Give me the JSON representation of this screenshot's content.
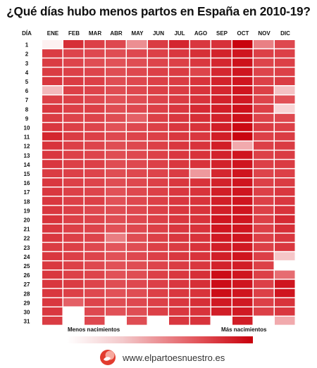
{
  "title": "¿Qué días hubo menos partos en España en 2010-19?",
  "website": "www.elpartoesnuestro.es",
  "chart_data": {
    "type": "heatmap",
    "row_header": "DÍA",
    "columns": [
      "ENE",
      "FEB",
      "MAR",
      "ABR",
      "MAY",
      "JUN",
      "JUL",
      "AGO",
      "SEP",
      "OCT",
      "NOV",
      "DIC"
    ],
    "rows": [
      "1",
      "2",
      "3",
      "4",
      "5",
      "6",
      "7",
      "8",
      "9",
      "10",
      "11",
      "12",
      "13",
      "14",
      "15",
      "16",
      "17",
      "18",
      "19",
      "20",
      "21",
      "22",
      "23",
      "24",
      "25",
      "26",
      "27",
      "28",
      "29",
      "30",
      "31"
    ],
    "color_scale": {
      "low": "#ffffff",
      "mid": "#e2555b",
      "high": "#c8000b"
    },
    "legend": {
      "low_label": "Menos nacimientos",
      "high_label": "Más nacimientos"
    },
    "values": [
      [
        0.05,
        0.78,
        0.7,
        0.66,
        0.4,
        0.72,
        0.82,
        0.74,
        0.77,
        0.98,
        0.45,
        0.66
      ],
      [
        0.72,
        0.68,
        0.66,
        0.64,
        0.66,
        0.7,
        0.74,
        0.78,
        0.84,
        0.9,
        0.7,
        0.7
      ],
      [
        0.72,
        0.68,
        0.64,
        0.62,
        0.64,
        0.68,
        0.7,
        0.74,
        0.82,
        0.92,
        0.68,
        0.7
      ],
      [
        0.72,
        0.7,
        0.68,
        0.64,
        0.66,
        0.7,
        0.72,
        0.68,
        0.82,
        0.9,
        0.68,
        0.7
      ],
      [
        0.74,
        0.72,
        0.7,
        0.64,
        0.66,
        0.7,
        0.72,
        0.76,
        0.84,
        0.9,
        0.7,
        0.72
      ],
      [
        0.25,
        0.7,
        0.68,
        0.64,
        0.66,
        0.7,
        0.72,
        0.76,
        0.82,
        0.9,
        0.7,
        0.22
      ],
      [
        0.7,
        0.7,
        0.66,
        0.62,
        0.64,
        0.68,
        0.72,
        0.76,
        0.84,
        0.88,
        0.68,
        0.62
      ],
      [
        0.74,
        0.7,
        0.7,
        0.64,
        0.66,
        0.7,
        0.74,
        0.8,
        0.86,
        0.92,
        0.7,
        0.15
      ],
      [
        0.72,
        0.68,
        0.68,
        0.64,
        0.56,
        0.7,
        0.74,
        0.78,
        0.84,
        0.92,
        0.68,
        0.66
      ],
      [
        0.74,
        0.7,
        0.68,
        0.62,
        0.66,
        0.7,
        0.74,
        0.76,
        0.86,
        0.96,
        0.72,
        0.7
      ],
      [
        0.82,
        0.72,
        0.7,
        0.66,
        0.68,
        0.7,
        0.74,
        0.74,
        0.86,
        0.98,
        0.7,
        0.72
      ],
      [
        0.76,
        0.7,
        0.68,
        0.64,
        0.66,
        0.7,
        0.74,
        0.76,
        0.86,
        0.3,
        0.7,
        0.72
      ],
      [
        0.74,
        0.7,
        0.68,
        0.64,
        0.66,
        0.7,
        0.74,
        0.76,
        0.84,
        0.9,
        0.7,
        0.72
      ],
      [
        0.74,
        0.7,
        0.7,
        0.64,
        0.66,
        0.7,
        0.74,
        0.76,
        0.84,
        0.9,
        0.7,
        0.72
      ],
      [
        0.72,
        0.7,
        0.68,
        0.64,
        0.66,
        0.68,
        0.72,
        0.36,
        0.82,
        0.9,
        0.68,
        0.7
      ],
      [
        0.74,
        0.7,
        0.68,
        0.64,
        0.66,
        0.7,
        0.74,
        0.76,
        0.84,
        0.9,
        0.7,
        0.72
      ],
      [
        0.74,
        0.7,
        0.68,
        0.62,
        0.66,
        0.7,
        0.74,
        0.76,
        0.86,
        0.9,
        0.7,
        0.74
      ],
      [
        0.74,
        0.7,
        0.7,
        0.62,
        0.66,
        0.7,
        0.74,
        0.76,
        0.86,
        0.9,
        0.7,
        0.74
      ],
      [
        0.74,
        0.7,
        0.66,
        0.64,
        0.66,
        0.7,
        0.74,
        0.76,
        0.86,
        0.9,
        0.7,
        0.76
      ],
      [
        0.76,
        0.7,
        0.68,
        0.64,
        0.66,
        0.7,
        0.74,
        0.76,
        0.9,
        0.9,
        0.7,
        0.8
      ],
      [
        0.74,
        0.7,
        0.68,
        0.62,
        0.66,
        0.7,
        0.74,
        0.76,
        0.9,
        0.9,
        0.7,
        0.78
      ],
      [
        0.74,
        0.7,
        0.68,
        0.46,
        0.64,
        0.7,
        0.74,
        0.76,
        0.88,
        0.9,
        0.7,
        0.74
      ],
      [
        0.72,
        0.7,
        0.66,
        0.6,
        0.64,
        0.7,
        0.72,
        0.76,
        0.86,
        0.88,
        0.7,
        0.74
      ],
      [
        0.74,
        0.7,
        0.68,
        0.62,
        0.66,
        0.7,
        0.74,
        0.76,
        0.86,
        0.9,
        0.7,
        0.2
      ],
      [
        0.74,
        0.7,
        0.66,
        0.62,
        0.64,
        0.68,
        0.72,
        0.74,
        0.84,
        0.86,
        0.7,
        0.0
      ],
      [
        0.74,
        0.7,
        0.68,
        0.62,
        0.64,
        0.7,
        0.74,
        0.78,
        0.94,
        0.9,
        0.7,
        0.52
      ],
      [
        0.74,
        0.72,
        0.68,
        0.64,
        0.66,
        0.7,
        0.74,
        0.78,
        0.94,
        0.9,
        0.7,
        0.9
      ],
      [
        0.74,
        0.7,
        0.66,
        0.62,
        0.64,
        0.7,
        0.74,
        0.76,
        0.94,
        0.9,
        0.7,
        0.9
      ],
      [
        0.74,
        0.56,
        0.68,
        0.64,
        0.66,
        0.7,
        0.74,
        0.78,
        0.88,
        0.88,
        0.7,
        0.76
      ],
      [
        0.74,
        null,
        0.66,
        0.62,
        0.64,
        0.7,
        0.74,
        0.76,
        0.86,
        0.88,
        0.7,
        0.74
      ],
      [
        0.72,
        null,
        0.66,
        null,
        0.64,
        null,
        0.74,
        0.76,
        null,
        0.86,
        null,
        0.3
      ]
    ]
  }
}
